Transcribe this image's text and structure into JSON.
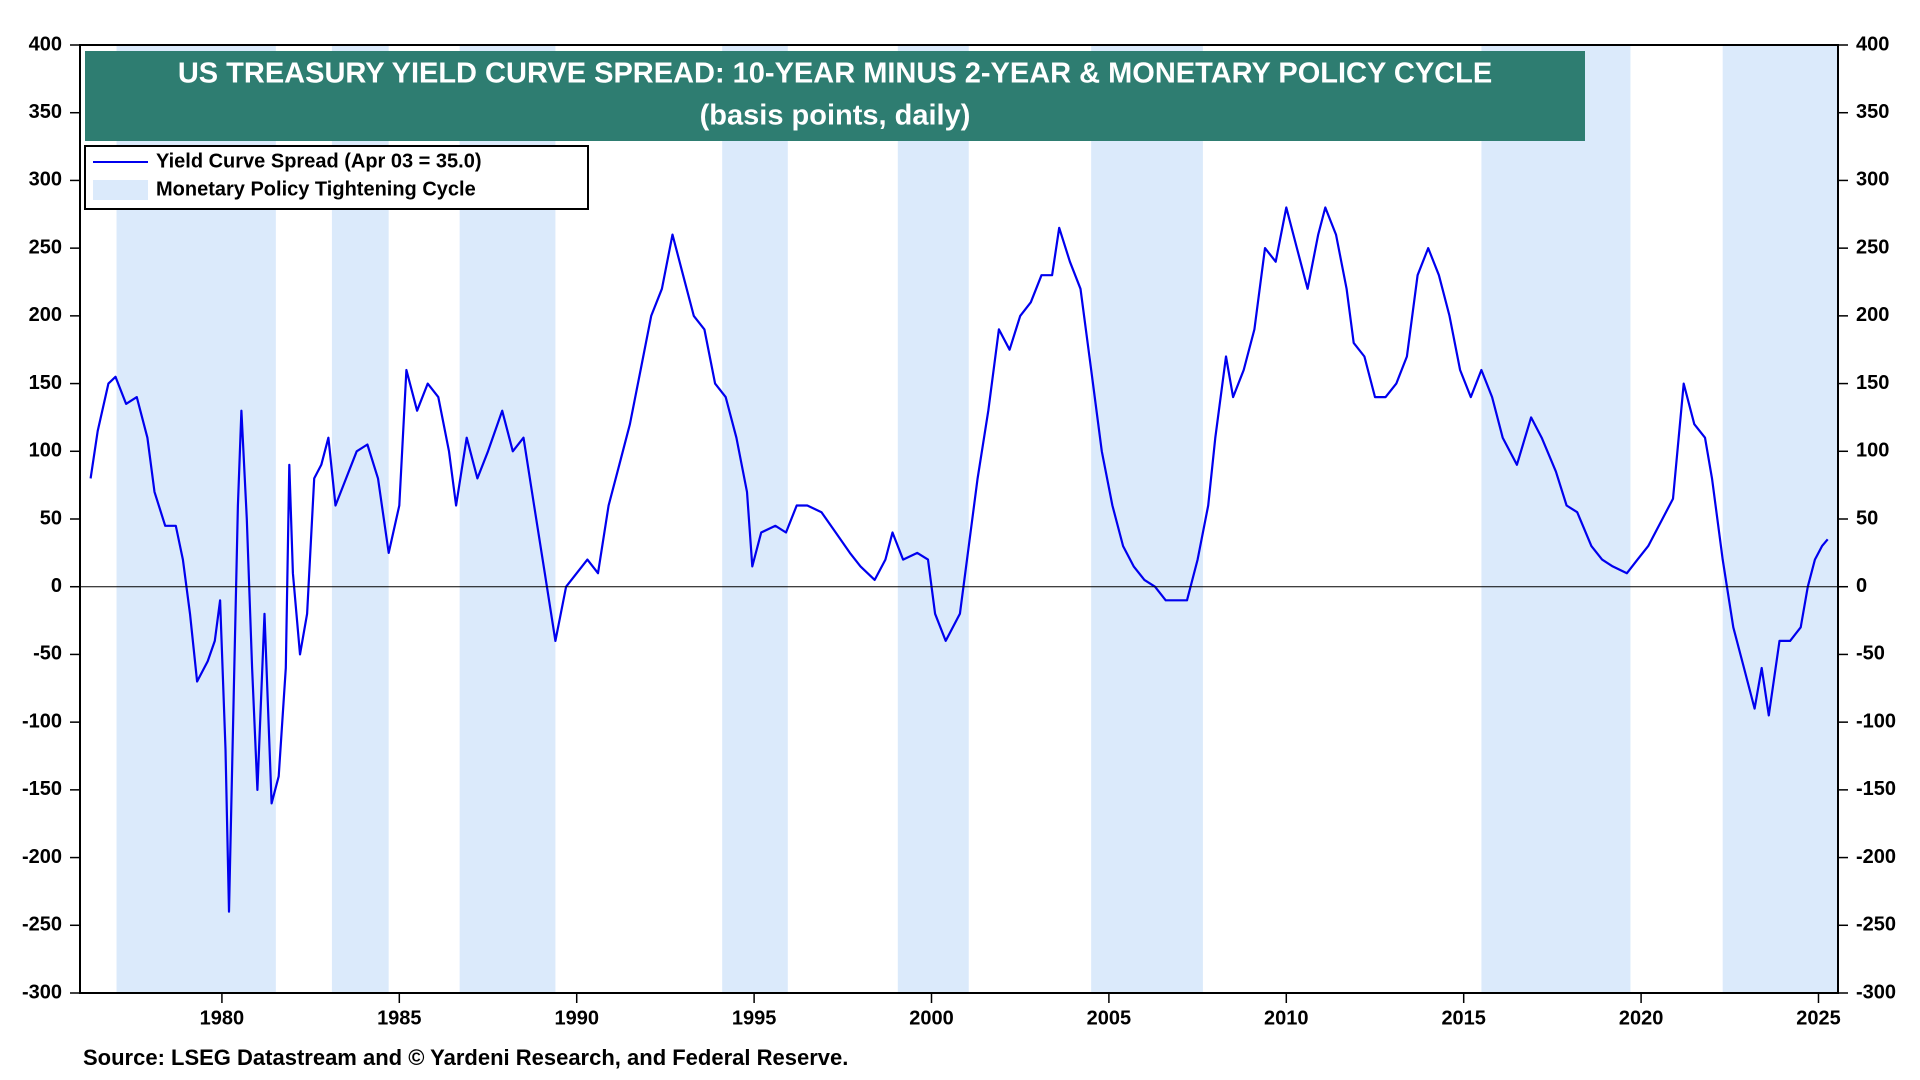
{
  "chart_data": {
    "type": "line",
    "title": "US TREASURY YIELD CURVE SPREAD: 10-YEAR MINUS 2-YEAR & MONETARY POLICY CYCLE",
    "subtitle": "(basis points, daily)",
    "source": "Source: LSEG Datastream and © Yardeni Research, and Federal Reserve.",
    "x": [
      1976.3,
      1976.5,
      1976.8,
      1977.0,
      1977.3,
      1977.6,
      1977.9,
      1978.1,
      1978.4,
      1978.7,
      1978.9,
      1979.1,
      1979.3,
      1979.6,
      1979.8,
      1979.95,
      1980.1,
      1980.2,
      1980.35,
      1980.45,
      1980.55,
      1980.7,
      1980.85,
      1981.0,
      1981.2,
      1981.4,
      1981.6,
      1981.8,
      1981.9,
      1982.0,
      1982.2,
      1982.4,
      1982.6,
      1982.8,
      1983.0,
      1983.2,
      1983.5,
      1983.8,
      1984.1,
      1984.4,
      1984.7,
      1985.0,
      1985.2,
      1985.5,
      1985.8,
      1986.1,
      1986.4,
      1986.6,
      1986.9,
      1987.2,
      1987.5,
      1987.9,
      1988.2,
      1988.5,
      1988.8,
      1989.1,
      1989.4,
      1989.7,
      1990.0,
      1990.3,
      1990.6,
      1990.9,
      1991.2,
      1991.5,
      1991.8,
      1992.1,
      1992.4,
      1992.7,
      1993.0,
      1993.3,
      1993.6,
      1993.9,
      1994.2,
      1994.5,
      1994.8,
      1994.95,
      1995.2,
      1995.6,
      1995.9,
      1996.2,
      1996.5,
      1996.9,
      1997.3,
      1997.7,
      1998.0,
      1998.4,
      1998.7,
      1998.9,
      1999.2,
      1999.6,
      1999.9,
      2000.1,
      2000.4,
      2000.8,
      2001.0,
      2001.3,
      2001.6,
      2001.9,
      2002.2,
      2002.5,
      2002.8,
      2003.1,
      2003.4,
      2003.6,
      2003.9,
      2004.2,
      2004.5,
      2004.8,
      2005.1,
      2005.4,
      2005.7,
      2006.0,
      2006.3,
      2006.6,
      2006.9,
      2007.2,
      2007.5,
      2007.8,
      2008.0,
      2008.3,
      2008.5,
      2008.8,
      2009.1,
      2009.4,
      2009.7,
      2010.0,
      2010.3,
      2010.6,
      2010.9,
      2011.1,
      2011.4,
      2011.7,
      2011.9,
      2012.2,
      2012.5,
      2012.8,
      2013.1,
      2013.4,
      2013.7,
      2014.0,
      2014.3,
      2014.6,
      2014.9,
      2015.2,
      2015.5,
      2015.8,
      2016.1,
      2016.5,
      2016.9,
      2017.2,
      2017.6,
      2017.9,
      2018.2,
      2018.6,
      2018.9,
      2019.2,
      2019.6,
      2019.9,
      2020.2,
      2020.6,
      2020.9,
      2021.2,
      2021.5,
      2021.8,
      2022.0,
      2022.3,
      2022.6,
      2022.9,
      2023.2,
      2023.4,
      2023.6,
      2023.9,
      2024.2,
      2024.5,
      2024.7,
      2024.9,
      2025.1,
      2025.26
    ],
    "series": [
      {
        "name": "Yield Curve Spread (Apr 03 = 35.0)",
        "color": "#0000ee",
        "values": [
          80,
          115,
          150,
          155,
          135,
          140,
          110,
          70,
          45,
          45,
          20,
          -20,
          -70,
          -55,
          -40,
          -10,
          -120,
          -240,
          -60,
          60,
          130,
          50,
          -60,
          -150,
          -20,
          -160,
          -140,
          -60,
          90,
          10,
          -50,
          -20,
          80,
          90,
          110,
          60,
          80,
          100,
          105,
          80,
          25,
          60,
          160,
          130,
          150,
          140,
          100,
          60,
          110,
          80,
          100,
          130,
          100,
          110,
          60,
          10,
          -40,
          0,
          10,
          20,
          10,
          60,
          90,
          120,
          160,
          200,
          220,
          260,
          230,
          200,
          190,
          150,
          140,
          110,
          70,
          15,
          40,
          45,
          40,
          60,
          60,
          55,
          40,
          25,
          15,
          5,
          20,
          40,
          20,
          25,
          20,
          -20,
          -40,
          -20,
          20,
          80,
          130,
          190,
          175,
          200,
          210,
          230,
          230,
          265,
          240,
          220,
          160,
          100,
          60,
          30,
          15,
          5,
          0,
          -10,
          -10,
          -10,
          20,
          60,
          110,
          170,
          140,
          160,
          190,
          250,
          240,
          280,
          250,
          220,
          260,
          280,
          260,
          220,
          180,
          170,
          140,
          140,
          150,
          170,
          230,
          250,
          230,
          200,
          160,
          140,
          160,
          140,
          110,
          90,
          125,
          110,
          85,
          60,
          55,
          30,
          20,
          15,
          10,
          20,
          30,
          50,
          65,
          150,
          120,
          110,
          80,
          20,
          -30,
          -60,
          -90,
          -60,
          -95,
          -40,
          -40,
          -30,
          0,
          20,
          30,
          35
        ]
      },
      {
        "name": "Monetary Policy Tightening Cycle",
        "color": "#dbeafb",
        "ranges": [
          [
            1977.03,
            1981.52
          ],
          [
            1983.1,
            1984.7
          ],
          [
            1986.7,
            1989.4
          ],
          [
            1994.1,
            1995.95
          ],
          [
            1999.05,
            2001.05
          ],
          [
            2004.5,
            2007.65
          ],
          [
            2015.5,
            2019.7
          ],
          [
            2022.3,
            2025.55
          ]
        ]
      }
    ],
    "xlim": [
      1976.0,
      2025.55
    ],
    "xticks": [
      1980,
      1985,
      1990,
      1995,
      2000,
      2005,
      2010,
      2015,
      2020,
      2025
    ],
    "ylim": [
      -300,
      400
    ],
    "yticks": [
      -300,
      -250,
      -200,
      -150,
      -100,
      -50,
      0,
      50,
      100,
      150,
      200,
      250,
      300,
      350,
      400
    ],
    "title_color": "#2e7d71"
  }
}
